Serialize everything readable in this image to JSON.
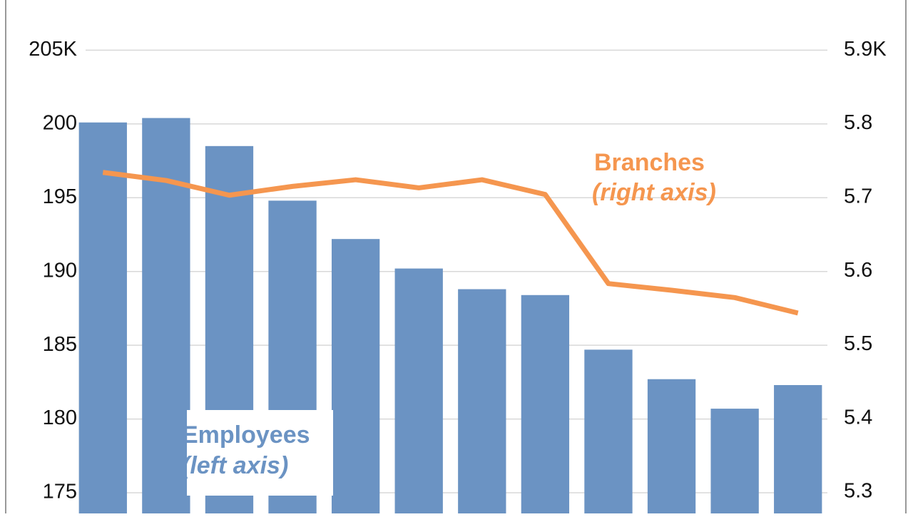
{
  "chart_data": {
    "type": "bar-line",
    "categories": [
      null,
      null,
      null,
      null,
      null,
      null,
      null,
      null,
      null,
      null,
      null,
      null
    ],
    "series": [
      {
        "name": "Employees",
        "type": "bar",
        "color": "#6b93c3",
        "axis": "y",
        "values": [
          200.1,
          200.4,
          198.5,
          194.8,
          192.2,
          190.2,
          188.8,
          188.4,
          184.7,
          182.7,
          180.7,
          182.3
        ]
      },
      {
        "name": "Branches",
        "type": "line",
        "color": "#f5964f",
        "axis": "y2",
        "values": [
          5.734,
          5.723,
          5.703,
          5.715,
          5.724,
          5.713,
          5.724,
          5.704,
          5.583,
          5.574,
          5.564,
          5.543
        ]
      }
    ],
    "annotations": [
      "(left axis)",
      "(right axis)"
    ],
    "ylim": [
      173.6,
      208.4
    ],
    "yticks": [
      {
        "value": 205,
        "label": "205K"
      },
      200,
      195,
      190,
      185,
      180,
      175
    ],
    "y2lim": [
      5.271,
      5.968
    ],
    "y2ticks": [
      {
        "value": 5.9,
        "label": "5.9K"
      },
      5.8,
      5.7,
      5.6,
      5.5,
      5.4,
      5.3
    ],
    "grid": true
  }
}
